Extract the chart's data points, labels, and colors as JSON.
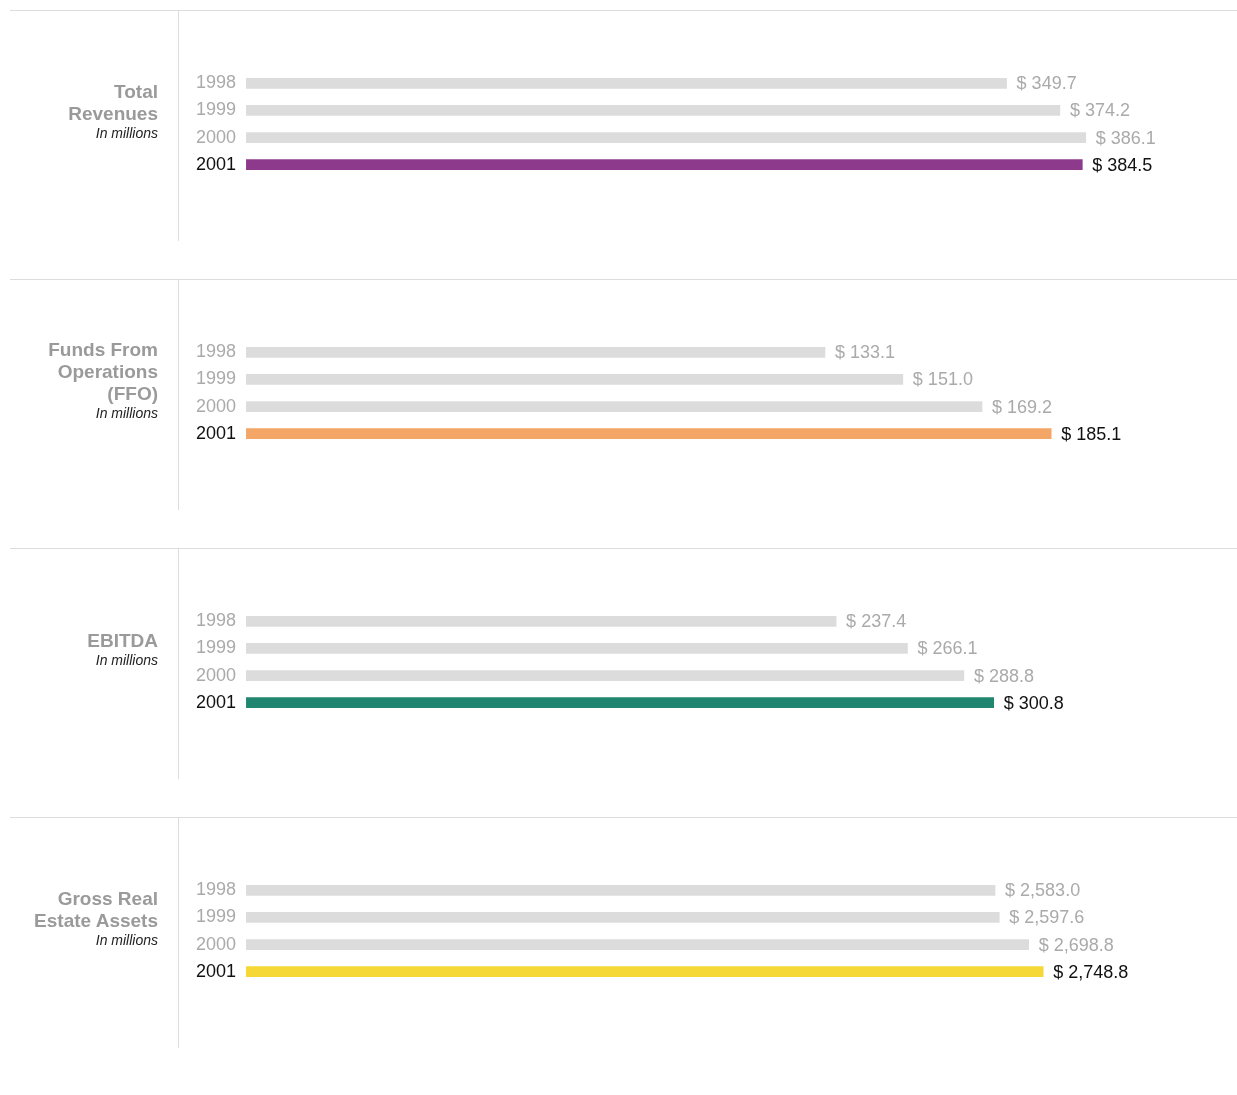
{
  "chart_data": [
    {
      "type": "bar",
      "orientation": "horizontal",
      "title": "Total Revenues",
      "subtitle": "In millions",
      "categories": [
        "1998",
        "1999",
        "2000",
        "2001"
      ],
      "values": [
        349.7,
        374.2,
        386.1,
        384.5
      ],
      "colors": [
        "#dcdcdc",
        "#dcdcdc",
        "#dcdcdc",
        "#8e3a8c"
      ],
      "value_labels": [
        "$ 349.7",
        "$ 374.2",
        "$ 386.1",
        "$ 384.5"
      ],
      "grid": false,
      "legend": false,
      "tick_labels": "y"
    },
    {
      "type": "bar",
      "orientation": "horizontal",
      "title": "Funds From Operations (FFO)",
      "subtitle": "In millions",
      "categories": [
        "1998",
        "1999",
        "2000",
        "2001"
      ],
      "values": [
        133.1,
        151.0,
        169.2,
        185.1
      ],
      "colors": [
        "#dcdcdc",
        "#dcdcdc",
        "#dcdcdc",
        "#f4a666"
      ],
      "value_labels": [
        "$ 133.1",
        "$ 151.0",
        "$ 169.2",
        "$ 185.1"
      ],
      "grid": false,
      "legend": false,
      "tick_labels": "y"
    },
    {
      "type": "bar",
      "orientation": "horizontal",
      "title": "EBITDA",
      "subtitle": "In millions",
      "categories": [
        "1998",
        "1999",
        "2000",
        "2001"
      ],
      "values": [
        237.4,
        266.1,
        288.8,
        300.8
      ],
      "colors": [
        "#dcdcdc",
        "#dcdcdc",
        "#dcdcdc",
        "#218670"
      ],
      "value_labels": [
        "$ 237.4",
        "$ 266.1",
        "$ 288.8",
        "$ 300.8"
      ],
      "grid": false,
      "legend": false,
      "tick_labels": "y"
    },
    {
      "type": "bar",
      "orientation": "horizontal",
      "title": "Gross Real Estate Assets",
      "subtitle": "In millions",
      "categories": [
        "1998",
        "1999",
        "2000",
        "2001"
      ],
      "values": [
        2583.0,
        2597.6,
        2698.8,
        2748.8
      ],
      "colors": [
        "#dcdcdc",
        "#dcdcdc",
        "#dcdcdc",
        "#f5d836"
      ],
      "value_labels": [
        "$ 2,583.0",
        "$ 2,597.6",
        "$ 2,698.8",
        "$ 2,748.8"
      ],
      "grid": false,
      "legend": false,
      "tick_labels": "y"
    }
  ]
}
